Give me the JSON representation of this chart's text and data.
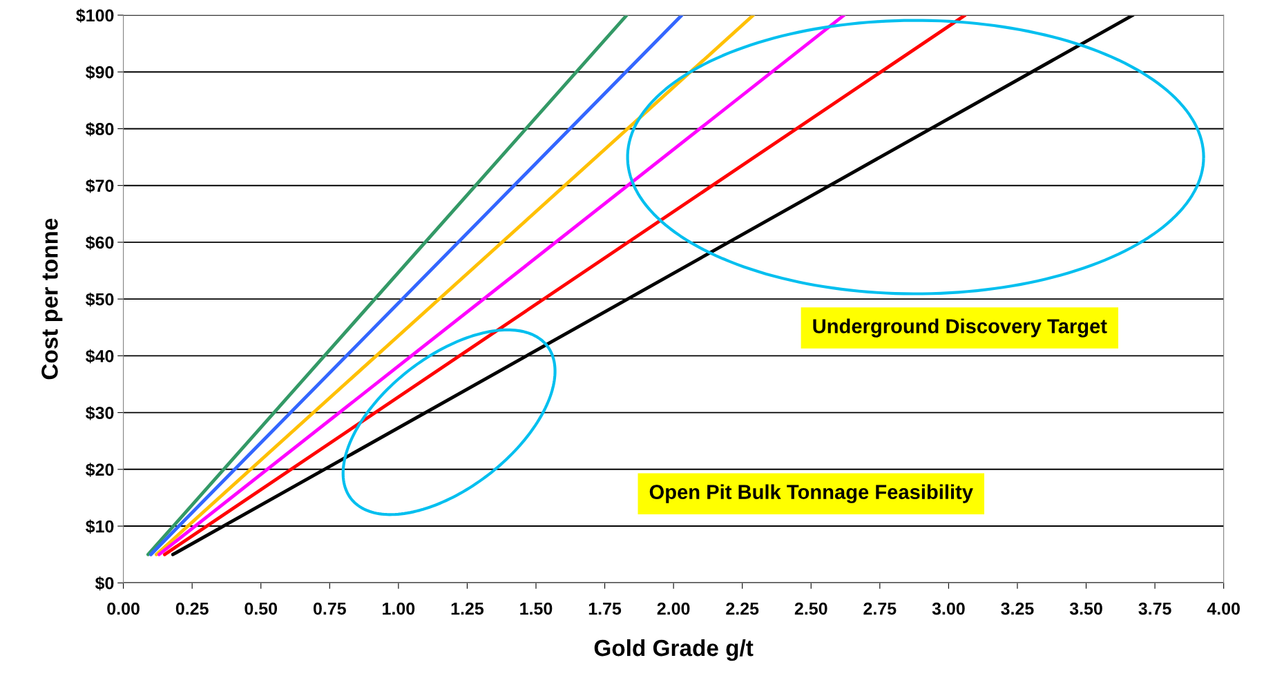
{
  "chart_data": {
    "type": "line",
    "xlabel": "Gold Grade g/t",
    "ylabel": "Cost per tonne",
    "xlim": [
      0,
      4
    ],
    "xticks": [
      {
        "value": 0,
        "label": "0.00"
      },
      {
        "value": 0.25,
        "label": "0.25"
      },
      {
        "value": 0.5,
        "label": "0.50"
      },
      {
        "value": 0.75,
        "label": "0.75"
      },
      {
        "value": 1,
        "label": "1.00"
      },
      {
        "value": 1.25,
        "label": "1.25"
      },
      {
        "value": 1.5,
        "label": "1.50"
      },
      {
        "value": 1.75,
        "label": "1.75"
      },
      {
        "value": 2,
        "label": "2.00"
      },
      {
        "value": 2.25,
        "label": "2.25"
      },
      {
        "value": 2.5,
        "label": "2.50"
      },
      {
        "value": 2.75,
        "label": "2.75"
      },
      {
        "value": 3,
        "label": "3.00"
      },
      {
        "value": 3.25,
        "label": "3.25"
      },
      {
        "value": 3.5,
        "label": "3.50"
      },
      {
        "value": 3.75,
        "label": "3.75"
      },
      {
        "value": 4,
        "label": "4.00"
      }
    ],
    "ylim": [
      0,
      100
    ],
    "yticks": [
      {
        "value": 0,
        "label": "$0"
      },
      {
        "value": 10,
        "label": "$10"
      },
      {
        "value": 20,
        "label": "$20"
      },
      {
        "value": 30,
        "label": "$30"
      },
      {
        "value": 40,
        "label": "$40"
      },
      {
        "value": 50,
        "label": "$50"
      },
      {
        "value": 60,
        "label": "$60"
      },
      {
        "value": 70,
        "label": "$70"
      },
      {
        "value": 80,
        "label": "$80"
      },
      {
        "value": 90,
        "label": "$90"
      },
      {
        "value": 100,
        "label": "$100"
      }
    ],
    "grid": "y",
    "line_style": "solid",
    "series": [
      {
        "color": "#339966",
        "x": [
          0.09,
          1.83
        ],
        "values": [
          5,
          100
        ]
      },
      {
        "color": "#3366ff",
        "x": [
          0.1,
          2.03
        ],
        "values": [
          5,
          100
        ]
      },
      {
        "color": "#ffc000",
        "x": [
          0.12,
          2.29
        ],
        "values": [
          5,
          100
        ]
      },
      {
        "color": "#ff00ff",
        "x": [
          0.13,
          2.62
        ],
        "values": [
          5,
          100
        ]
      },
      {
        "color": "#ff0000",
        "x": [
          0.15,
          3.06
        ],
        "values": [
          5,
          100
        ]
      },
      {
        "color": "#000000",
        "x": [
          0.18,
          3.67
        ],
        "values": [
          5,
          100
        ]
      }
    ],
    "annotations": [
      "Underground Discovery Target",
      "Open Pit Bulk Tonnage Feasibility"
    ]
  }
}
